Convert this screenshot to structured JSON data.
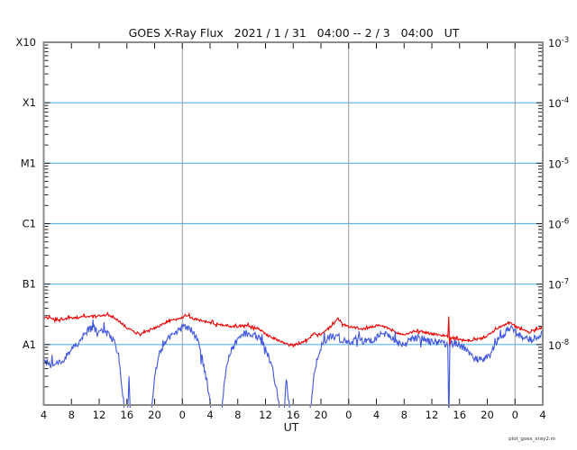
{
  "window": {
    "background": "#ffffff"
  },
  "chart_data": {
    "type": "line",
    "title": "GOES X-Ray Flux   2021 / 1 / 31   04:00 -- 2 / 3   04:00   UT",
    "watermark": "plot_goes_xray2.m",
    "x_axis": {
      "label": "UT",
      "span_hours": 72,
      "tick_interval_hours": 4,
      "tick_labels": [
        "4",
        "8",
        "12",
        "16",
        "20",
        "0",
        "4",
        "8",
        "12",
        "16",
        "20",
        "0",
        "4",
        "8",
        "12",
        "16",
        "20",
        "0",
        "4"
      ],
      "day_boundary_hours": [
        20,
        44,
        68
      ]
    },
    "y_axis": {
      "scale": "log",
      "top_exponent": -3,
      "bottom_exponent": -9,
      "left_class_labels": [
        "X10",
        "X1",
        "M1",
        "C1",
        "B1",
        "A1"
      ],
      "right_label_exponents": [
        -3,
        -4,
        -5,
        -6,
        -7,
        -8
      ],
      "gridline_exponents": [
        -4,
        -5,
        -6,
        -7,
        -8
      ]
    },
    "value_scale_watts_m2": 1e-08,
    "series": [
      {
        "name": "xray-long-wavelength",
        "color": "#f00000",
        "noise_log_amplitude": 0.02,
        "seed": 11,
        "points": [
          [
            0,
            2.8
          ],
          [
            1,
            2.7
          ],
          [
            2,
            2.6
          ],
          [
            3,
            2.7
          ],
          [
            4,
            2.75
          ],
          [
            5,
            2.8
          ],
          [
            6,
            2.9
          ],
          [
            7,
            2.95
          ],
          [
            8,
            3.0
          ],
          [
            9,
            3.1
          ],
          [
            10,
            2.85
          ],
          [
            11,
            2.4
          ],
          [
            12,
            1.9
          ],
          [
            13,
            1.6
          ],
          [
            14,
            1.5
          ],
          [
            15,
            1.65
          ],
          [
            16,
            1.85
          ],
          [
            17,
            2.1
          ],
          [
            18,
            2.4
          ],
          [
            19,
            2.6
          ],
          [
            20,
            2.85
          ],
          [
            20.5,
            3.1
          ],
          [
            21,
            2.9
          ],
          [
            22,
            2.6
          ],
          [
            23,
            2.45
          ],
          [
            24,
            2.3
          ],
          [
            25,
            2.2
          ],
          [
            26,
            2.1
          ],
          [
            27,
            2.0
          ],
          [
            28,
            2.0
          ],
          [
            29,
            2.1
          ],
          [
            30,
            2.0
          ],
          [
            31,
            1.8
          ],
          [
            32,
            1.5
          ],
          [
            33,
            1.3
          ],
          [
            34,
            1.15
          ],
          [
            35,
            1.05
          ],
          [
            36,
            1.0
          ],
          [
            37,
            1.05
          ],
          [
            38,
            1.15
          ],
          [
            39,
            1.55
          ],
          [
            40,
            1.45
          ],
          [
            41,
            1.8
          ],
          [
            42,
            2.3
          ],
          [
            42.5,
            2.85
          ],
          [
            43,
            2.2
          ],
          [
            44,
            2.0
          ],
          [
            45,
            1.9
          ],
          [
            46,
            1.8
          ],
          [
            47,
            1.9
          ],
          [
            48,
            2.05
          ],
          [
            49,
            2.0
          ],
          [
            50,
            1.8
          ],
          [
            51,
            1.55
          ],
          [
            52,
            1.45
          ],
          [
            53,
            1.6
          ],
          [
            54,
            1.7
          ],
          [
            55,
            1.6
          ],
          [
            56,
            1.5
          ],
          [
            57,
            1.45
          ],
          [
            58,
            1.4
          ],
          [
            58.3,
            1.35
          ],
          [
            58.45,
            2.9
          ],
          [
            58.55,
            0.95
          ],
          [
            58.7,
            1.3
          ],
          [
            59,
            1.3
          ],
          [
            60,
            1.2
          ],
          [
            61,
            1.15
          ],
          [
            62,
            1.2
          ],
          [
            63,
            1.25
          ],
          [
            64,
            1.4
          ],
          [
            65,
            1.7
          ],
          [
            66,
            2.0
          ],
          [
            67,
            2.2
          ],
          [
            67.5,
            2.3
          ],
          [
            68,
            2.0
          ],
          [
            69,
            1.75
          ],
          [
            70,
            1.6
          ],
          [
            71,
            1.8
          ],
          [
            72,
            1.9
          ]
        ]
      },
      {
        "name": "xray-short-wavelength",
        "color": "#4157e0",
        "noise_log_amplitude": 0.06,
        "seed": 97,
        "points": [
          [
            0,
            0.55
          ],
          [
            1,
            0.45
          ],
          [
            2,
            0.5
          ],
          [
            3,
            0.6
          ],
          [
            4,
            0.8
          ],
          [
            5,
            1.1
          ],
          [
            6,
            1.5
          ],
          [
            6.5,
            1.75
          ],
          [
            7,
            1.85
          ],
          [
            8,
            1.7
          ],
          [
            9,
            1.6
          ],
          [
            10,
            1.25
          ],
          [
            10.5,
            0.85
          ],
          [
            11,
            0.4
          ],
          [
            11.5,
            0.12
          ],
          [
            12,
            0.04
          ],
          [
            12.3,
            0.3
          ],
          [
            12.6,
            0.04
          ],
          [
            13,
            0.04
          ],
          [
            14,
            0.04
          ],
          [
            15,
            0.04
          ],
          [
            15.5,
            0.07
          ],
          [
            16,
            0.3
          ],
          [
            16.5,
            0.55
          ],
          [
            17,
            0.85
          ],
          [
            18,
            1.25
          ],
          [
            19,
            1.6
          ],
          [
            20,
            1.9
          ],
          [
            20.5,
            2.0
          ],
          [
            21,
            1.9
          ],
          [
            21.5,
            1.6
          ],
          [
            22,
            1.3
          ],
          [
            22.5,
            0.9
          ],
          [
            23,
            0.5
          ],
          [
            23.5,
            0.25
          ],
          [
            24,
            0.12
          ],
          [
            24.5,
            0.04
          ],
          [
            25,
            0.04
          ],
          [
            25.5,
            0.04
          ],
          [
            26,
            0.2
          ],
          [
            26.5,
            0.5
          ],
          [
            27,
            0.8
          ],
          [
            28,
            1.2
          ],
          [
            29,
            1.5
          ],
          [
            29.5,
            1.55
          ],
          [
            30,
            1.5
          ],
          [
            30.5,
            1.4
          ],
          [
            31,
            1.3
          ],
          [
            31.5,
            1.1
          ],
          [
            32,
            0.9
          ],
          [
            32.5,
            0.6
          ],
          [
            33,
            0.4
          ],
          [
            33.5,
            0.2
          ],
          [
            34,
            0.1
          ],
          [
            34.5,
            0.04
          ],
          [
            35,
            0.28
          ],
          [
            35.5,
            0.08
          ],
          [
            36,
            0.04
          ],
          [
            36.5,
            0.04
          ],
          [
            37,
            0.06
          ],
          [
            37.5,
            0.04
          ],
          [
            38,
            0.04
          ],
          [
            38.5,
            0.1
          ],
          [
            39,
            0.3
          ],
          [
            39.5,
            0.6
          ],
          [
            40,
            0.9
          ],
          [
            40.5,
            1.15
          ],
          [
            41,
            1.3
          ],
          [
            41.5,
            1.4
          ],
          [
            42,
            1.35
          ],
          [
            43,
            1.2
          ],
          [
            44,
            1.1
          ],
          [
            45,
            1.2
          ],
          [
            46,
            1.15
          ],
          [
            47,
            1.1
          ],
          [
            48,
            1.3
          ],
          [
            49,
            1.5
          ],
          [
            50,
            1.3
          ],
          [
            51,
            1.1
          ],
          [
            52,
            1.0
          ],
          [
            53,
            1.2
          ],
          [
            54,
            1.3
          ],
          [
            55,
            1.2
          ],
          [
            56,
            1.1
          ],
          [
            57,
            1.1
          ],
          [
            58,
            1.0
          ],
          [
            58.3,
            1.0
          ],
          [
            58.45,
            0.04
          ],
          [
            58.6,
            1.0
          ],
          [
            59,
            1.1
          ],
          [
            60,
            1.0
          ],
          [
            61,
            0.8
          ],
          [
            62,
            0.6
          ],
          [
            63,
            0.55
          ],
          [
            64,
            0.65
          ],
          [
            65,
            0.9
          ],
          [
            66,
            1.3
          ],
          [
            67,
            1.8
          ],
          [
            67.5,
            2.0
          ],
          [
            68,
            1.7
          ],
          [
            69,
            1.3
          ],
          [
            70,
            1.2
          ],
          [
            71,
            1.3
          ],
          [
            72,
            1.45
          ]
        ]
      }
    ],
    "colors": {
      "grid_horizontal": "#5ab4f2",
      "grid_vertical": "#999999",
      "frame": "#8c8c8c",
      "tick": "#1a1a1a",
      "text": "#111111"
    },
    "layout_hints": {
      "grid": "on",
      "legend": "none"
    }
  }
}
